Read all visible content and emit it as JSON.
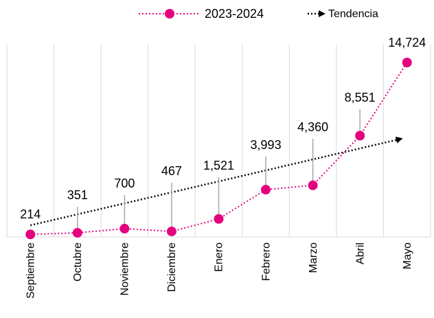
{
  "chart_data": {
    "type": "line",
    "categories": [
      "Septiembre",
      "Octubre",
      "Noviembre",
      "Diciembre",
      "Enero",
      "Febrero",
      "Marzo",
      "Abril",
      "Mayo"
    ],
    "series": [
      {
        "name": "2023-2024",
        "color": "#e5007e",
        "values": [
          214,
          351,
          700,
          467,
          1521,
          3993,
          4360,
          8551,
          14724
        ],
        "value_labels": [
          "214",
          "351",
          "700",
          "467",
          "1,521",
          "3,993",
          "4,360",
          "8,551",
          "14,724"
        ]
      }
    ],
    "trend": {
      "name": "Tendencia",
      "color": "#000000",
      "start": 985,
      "end": 8290
    },
    "grid": true
  }
}
